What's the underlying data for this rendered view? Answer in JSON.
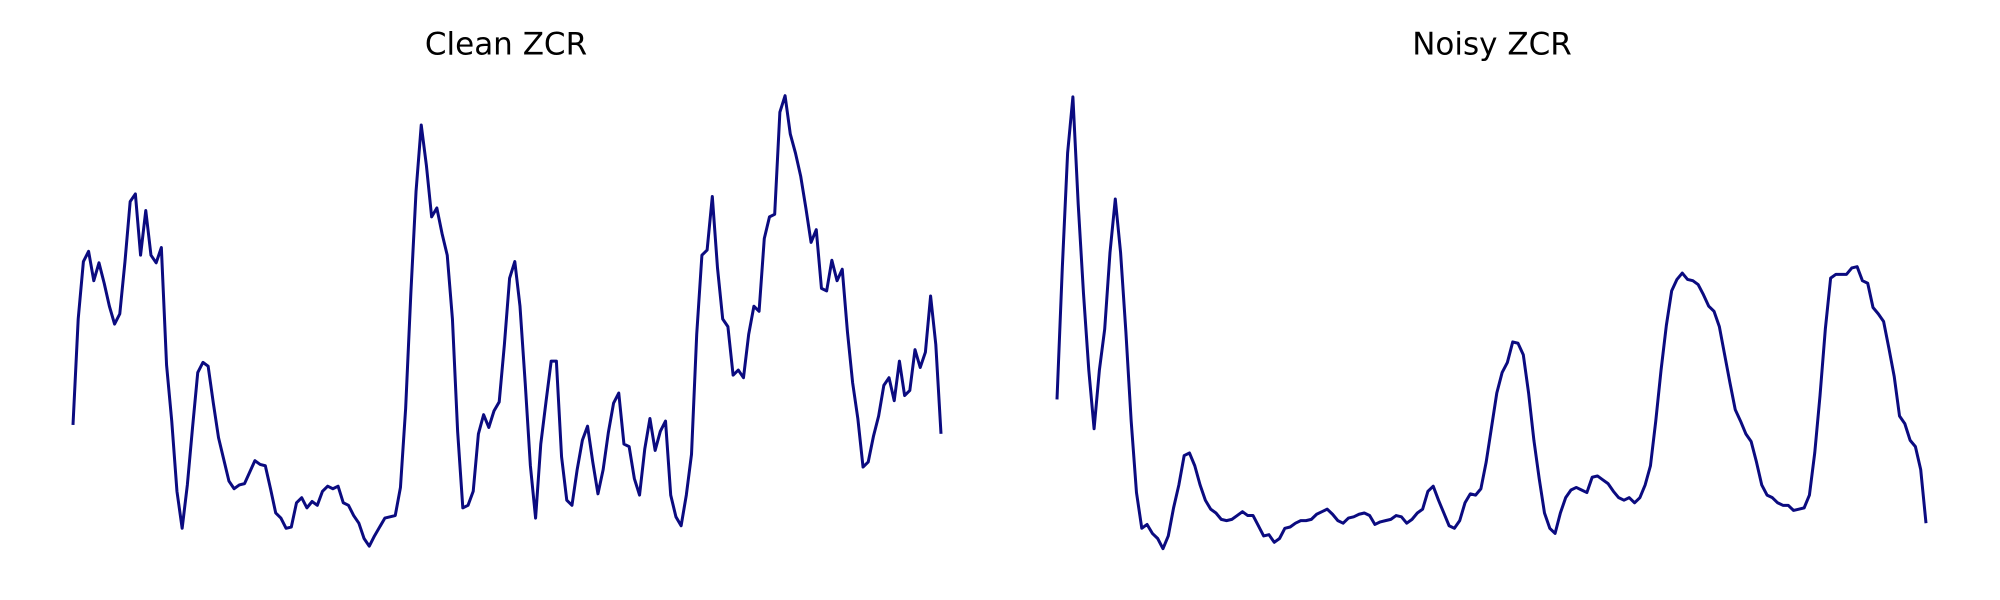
{
  "chart_data": [
    {
      "type": "line",
      "title": "Clean ZCR",
      "color": "#0b0b80",
      "ylim": [
        0,
        400
      ],
      "values": [
        127,
        210,
        255,
        263,
        240,
        254,
        238,
        220,
        206,
        214,
        255,
        302,
        308,
        260,
        295,
        260,
        254,
        266,
        174,
        130,
        75,
        46,
        80,
        125,
        168,
        176,
        173,
        144,
        117,
        100,
        83,
        77,
        80,
        81,
        90,
        99,
        96,
        95,
        77,
        58,
        54,
        46,
        47,
        66,
        70,
        62,
        67,
        64,
        75,
        79,
        77,
        79,
        66,
        64,
        56,
        50,
        38,
        32,
        40,
        47,
        54,
        55,
        56,
        78,
        140,
        230,
        310,
        362,
        330,
        290,
        297,
        277,
        260,
        210,
        122,
        62,
        64,
        75,
        120,
        135,
        125,
        138,
        145,
        190,
        242,
        255,
        220,
        160,
        95,
        54,
        112,
        145,
        177,
        177,
        102,
        68,
        64,
        92,
        115,
        126,
        98,
        73,
        92,
        121,
        144,
        152,
        112,
        110,
        85,
        72,
        108,
        132,
        107,
        122,
        130,
        72,
        55,
        48,
        72,
        104,
        198,
        260,
        264,
        306,
        250,
        210,
        204,
        166,
        170,
        164,
        198,
        220,
        216,
        273,
        290,
        292,
        372,
        385,
        355,
        340,
        322,
        297,
        270,
        280,
        234,
        232,
        256,
        240,
        249,
        200,
        160,
        132,
        94,
        98,
        118,
        134,
        158,
        164,
        146,
        177,
        150,
        154,
        186,
        172,
        184,
        228,
        190,
        120
      ]
    },
    {
      "type": "line",
      "title": "Noisy ZCR",
      "color": "#0b0b80",
      "ylim": [
        0,
        400
      ],
      "values": [
        147,
        250,
        340,
        384,
        300,
        230,
        170,
        124,
        170,
        202,
        262,
        304,
        262,
        200,
        130,
        74,
        46,
        49,
        42,
        38,
        30,
        40,
        62,
        80,
        103,
        105,
        95,
        80,
        68,
        61,
        58,
        53,
        52,
        53,
        56,
        59,
        56,
        56,
        48,
        40,
        41,
        35,
        38,
        46,
        47,
        50,
        52,
        52,
        53,
        57,
        59,
        61,
        57,
        52,
        50,
        54,
        55,
        57,
        58,
        56,
        49,
        51,
        52,
        53,
        56,
        55,
        50,
        53,
        58,
        61,
        75,
        79,
        68,
        58,
        48,
        46,
        52,
        66,
        73,
        72,
        77,
        98,
        125,
        152,
        168,
        176,
        192,
        191,
        182,
        152,
        115,
        85,
        58,
        46,
        42,
        58,
        70,
        76,
        78,
        76,
        74,
        86,
        87,
        84,
        81,
        75,
        70,
        68,
        70,
        66,
        70,
        80,
        95,
        130,
        170,
        205,
        232,
        241,
        246,
        241,
        240,
        237,
        229,
        220,
        216,
        204,
        182,
        160,
        139,
        130,
        120,
        114,
        98,
        80,
        72,
        70,
        66,
        64,
        64,
        60,
        61,
        62,
        72,
        105,
        150,
        202,
        242,
        245,
        245,
        245,
        250,
        251,
        240,
        238,
        219,
        214,
        208,
        187,
        165,
        134,
        128,
        115,
        110,
        92,
        50
      ]
    }
  ]
}
